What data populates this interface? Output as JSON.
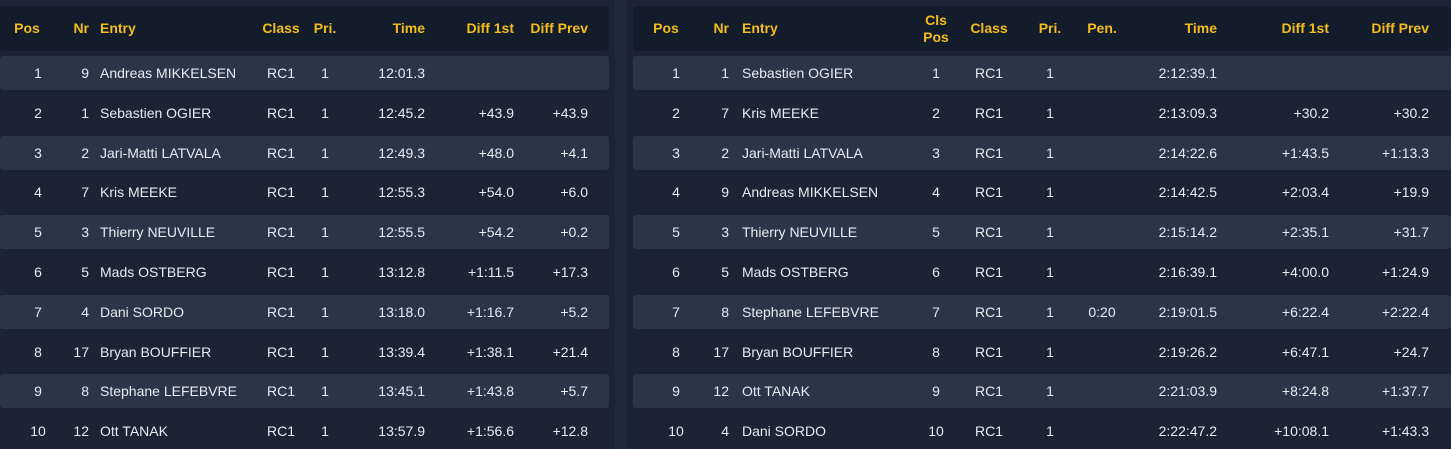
{
  "stage_table": {
    "headers": {
      "pos": "Pos",
      "nr": "Nr",
      "entry": "Entry",
      "class": "Class",
      "pri": "Pri.",
      "time": "Time",
      "diff1": "Diff 1st",
      "diffprev": "Diff Prev"
    },
    "rows": [
      {
        "pos": "1",
        "nr": "9",
        "entry": "Andreas MIKKELSEN",
        "class": "RC1",
        "pri": "1",
        "time": "12:01.3",
        "diff1": "",
        "diffprev": ""
      },
      {
        "pos": "2",
        "nr": "1",
        "entry": "Sebastien OGIER",
        "class": "RC1",
        "pri": "1",
        "time": "12:45.2",
        "diff1": "+43.9",
        "diffprev": "+43.9"
      },
      {
        "pos": "3",
        "nr": "2",
        "entry": "Jari-Matti LATVALA",
        "class": "RC1",
        "pri": "1",
        "time": "12:49.3",
        "diff1": "+48.0",
        "diffprev": "+4.1"
      },
      {
        "pos": "4",
        "nr": "7",
        "entry": "Kris MEEKE",
        "class": "RC1",
        "pri": "1",
        "time": "12:55.3",
        "diff1": "+54.0",
        "diffprev": "+6.0"
      },
      {
        "pos": "5",
        "nr": "3",
        "entry": "Thierry NEUVILLE",
        "class": "RC1",
        "pri": "1",
        "time": "12:55.5",
        "diff1": "+54.2",
        "diffprev": "+0.2"
      },
      {
        "pos": "6",
        "nr": "5",
        "entry": "Mads OSTBERG",
        "class": "RC1",
        "pri": "1",
        "time": "13:12.8",
        "diff1": "+1:11.5",
        "diffprev": "+17.3"
      },
      {
        "pos": "7",
        "nr": "4",
        "entry": "Dani SORDO",
        "class": "RC1",
        "pri": "1",
        "time": "13:18.0",
        "diff1": "+1:16.7",
        "diffprev": "+5.2"
      },
      {
        "pos": "8",
        "nr": "17",
        "entry": "Bryan BOUFFIER",
        "class": "RC1",
        "pri": "1",
        "time": "13:39.4",
        "diff1": "+1:38.1",
        "diffprev": "+21.4"
      },
      {
        "pos": "9",
        "nr": "8",
        "entry": "Stephane LEFEBVRE",
        "class": "RC1",
        "pri": "1",
        "time": "13:45.1",
        "diff1": "+1:43.8",
        "diffprev": "+5.7"
      },
      {
        "pos": "10",
        "nr": "12",
        "entry": "Ott TANAK",
        "class": "RC1",
        "pri": "1",
        "time": "13:57.9",
        "diff1": "+1:56.6",
        "diffprev": "+12.8"
      }
    ]
  },
  "overall_table": {
    "headers": {
      "pos": "Pos",
      "nr": "Nr",
      "entry": "Entry",
      "clspos": "Cls Pos",
      "class": "Class",
      "pri": "Pri.",
      "pen": "Pen.",
      "time": "Time",
      "diff1": "Diff 1st",
      "diffprev": "Diff Prev"
    },
    "rows": [
      {
        "pos": "1",
        "nr": "1",
        "entry": "Sebastien OGIER",
        "clspos": "1",
        "class": "RC1",
        "pri": "1",
        "pen": "",
        "time": "2:12:39.1",
        "diff1": "",
        "diffprev": ""
      },
      {
        "pos": "2",
        "nr": "7",
        "entry": "Kris MEEKE",
        "clspos": "2",
        "class": "RC1",
        "pri": "1",
        "pen": "",
        "time": "2:13:09.3",
        "diff1": "+30.2",
        "diffprev": "+30.2"
      },
      {
        "pos": "3",
        "nr": "2",
        "entry": "Jari-Matti LATVALA",
        "clspos": "3",
        "class": "RC1",
        "pri": "1",
        "pen": "",
        "time": "2:14:22.6",
        "diff1": "+1:43.5",
        "diffprev": "+1:13.3"
      },
      {
        "pos": "4",
        "nr": "9",
        "entry": "Andreas MIKKELSEN",
        "clspos": "4",
        "class": "RC1",
        "pri": "1",
        "pen": "",
        "time": "2:14:42.5",
        "diff1": "+2:03.4",
        "diffprev": "+19.9"
      },
      {
        "pos": "5",
        "nr": "3",
        "entry": "Thierry NEUVILLE",
        "clspos": "5",
        "class": "RC1",
        "pri": "1",
        "pen": "",
        "time": "2:15:14.2",
        "diff1": "+2:35.1",
        "diffprev": "+31.7"
      },
      {
        "pos": "6",
        "nr": "5",
        "entry": "Mads OSTBERG",
        "clspos": "6",
        "class": "RC1",
        "pri": "1",
        "pen": "",
        "time": "2:16:39.1",
        "diff1": "+4:00.0",
        "diffprev": "+1:24.9"
      },
      {
        "pos": "7",
        "nr": "8",
        "entry": "Stephane LEFEBVRE",
        "clspos": "7",
        "class": "RC1",
        "pri": "1",
        "pen": "0:20",
        "time": "2:19:01.5",
        "diff1": "+6:22.4",
        "diffprev": "+2:22.4"
      },
      {
        "pos": "8",
        "nr": "17",
        "entry": "Bryan BOUFFIER",
        "clspos": "8",
        "class": "RC1",
        "pri": "1",
        "pen": "",
        "time": "2:19:26.2",
        "diff1": "+6:47.1",
        "diffprev": "+24.7"
      },
      {
        "pos": "9",
        "nr": "12",
        "entry": "Ott TANAK",
        "clspos": "9",
        "class": "RC1",
        "pri": "1",
        "pen": "",
        "time": "2:21:03.9",
        "diff1": "+8:24.8",
        "diffprev": "+1:37.7"
      },
      {
        "pos": "10",
        "nr": "4",
        "entry": "Dani SORDO",
        "clspos": "10",
        "class": "RC1",
        "pri": "1",
        "pen": "",
        "time": "2:22:47.2",
        "diff1": "+10:08.1",
        "diffprev": "+1:43.3"
      }
    ]
  }
}
